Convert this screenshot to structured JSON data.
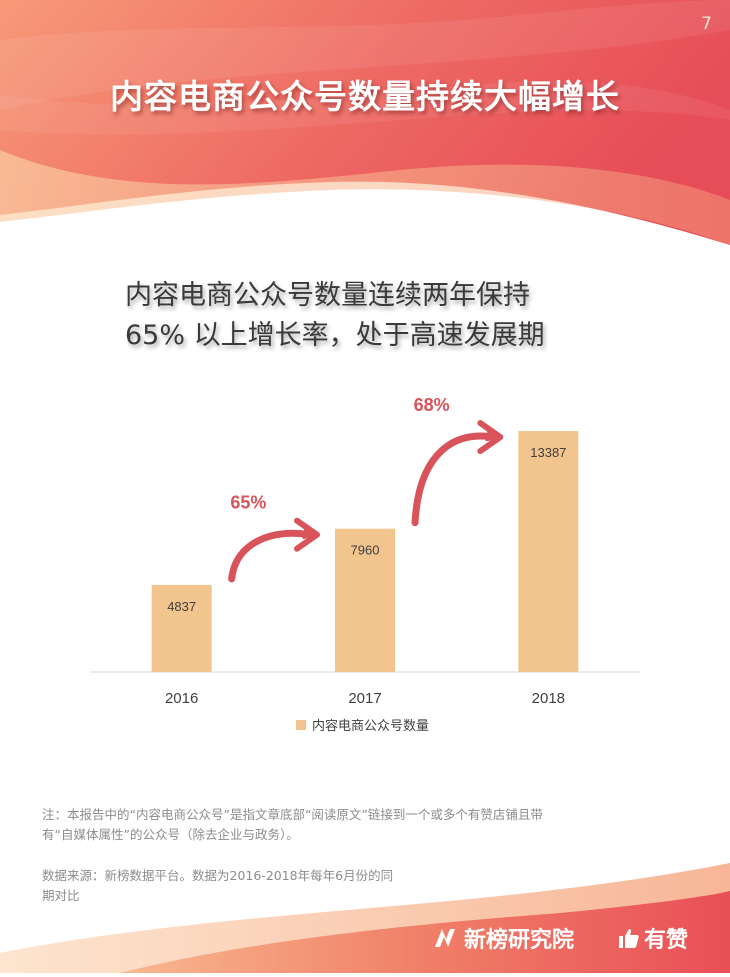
{
  "page": {
    "number": "7",
    "title": "内容电商公众号数量持续大幅增长",
    "subtitle_lines": [
      "内容电商公众号数量连续两年保持",
      "65% 以上增长率，处于高速发展期"
    ]
  },
  "chart_data": {
    "type": "bar",
    "categories": [
      "2016",
      "2017",
      "2018"
    ],
    "series": [
      {
        "name": "内容电商公众号数量",
        "values": [
          4837,
          7960,
          13387
        ]
      }
    ],
    "value_labels": [
      "4837",
      "7960",
      "13387"
    ],
    "growth_annotations": [
      {
        "from": "2016",
        "to": "2017",
        "label": "65%"
      },
      {
        "from": "2017",
        "to": "2018",
        "label": "68%"
      }
    ],
    "ylim": [
      0,
      14000
    ],
    "grid": false,
    "legend_position": "bottom",
    "colors": {
      "bar": "#F2C48E",
      "arrow": "#D9545A",
      "axis": "#D9D9D9",
      "growth_text": "#D9545A"
    }
  },
  "notes": {
    "note": "注：本报告中的“内容电商公众号”是指文章底部“阅读原文”链接到一个或多个有赞店铺且带有“自媒体属性”的公众号（除去企业与政务）。",
    "source": "数据来源：新榜数据平台。数据为2016-2018年每年6月份的同期对比"
  },
  "branding": {
    "xinbang": "新榜研究院",
    "youzan": "有赞",
    "xinbang_icon": "xinbang-logo-icon",
    "youzan_icon": "thumbs-up-icon"
  },
  "colors": {
    "hero_start": "#F7A27E",
    "hero_end": "#E8505B",
    "title_text": "#FFFFFF"
  }
}
